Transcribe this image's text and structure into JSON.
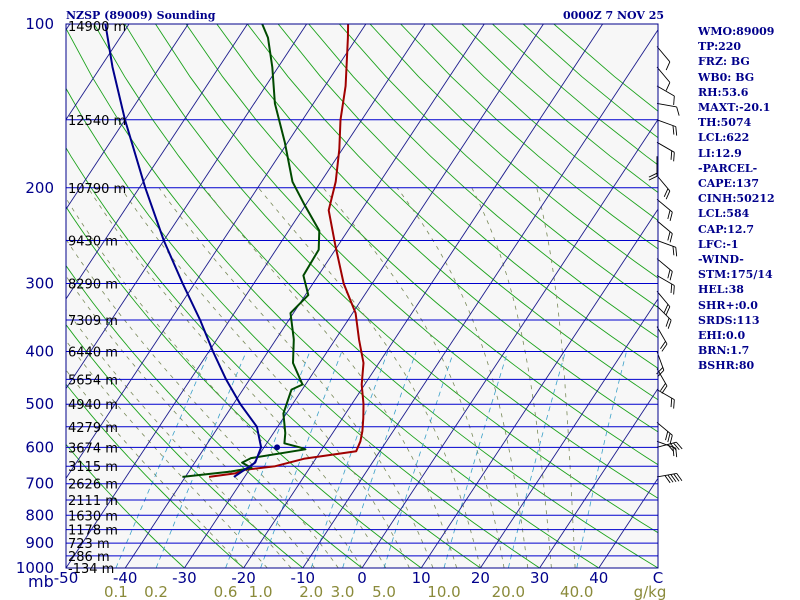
{
  "header": {
    "station": "NZSP (89009) Sounding",
    "time": "0000Z  7 NOV 25"
  },
  "indices": [
    "WMO:89009",
    "TP:220",
    "FRZ: BG",
    "WB0: BG",
    "RH:53.6",
    "MAXT:-20.1",
    "TH:5074",
    "LCL:622",
    "LI:12.9",
    "-PARCEL-",
    "CAPE:137",
    "CINH:50212",
    "LCL:584",
    "CAP:12.7",
    "LFC:-1",
    "-WIND-",
    "STM:175/14",
    "HEL:38",
    "SHR+:0.0",
    "SRDS:113",
    "EHI:0.0",
    "BRN:1.7",
    "BSHR:80"
  ],
  "footer": {
    "unit": "mb"
  },
  "colors": {
    "isobar": "#0000cd",
    "isotherm": "#1c1c8c",
    "dry_adiabat": "#1ca21c",
    "moist_adiabat": "#7a8a5a",
    "mixing_ratio": "#3aa0c8",
    "temperature": "#a00000",
    "dewpoint": "#004a00",
    "parcel": "#00008b",
    "axis_text": "#00008b",
    "mixing_text": "#8a8a3a",
    "background": "#f7f7f7"
  },
  "chart_data": {
    "type": "line",
    "title": "NZSP (89009) Sounding",
    "xlabel": "",
    "ylabel": "",
    "y_scale": "log",
    "ylim": [
      1000,
      100
    ],
    "xlim": [
      -50,
      50
    ],
    "pressure_levels": [
      100,
      200,
      300,
      400,
      500,
      600,
      700,
      800,
      900,
      1000
    ],
    "pressure_ticks": [
      {
        "p": 100,
        "label": "100",
        "height": "14900 m"
      },
      {
        "p": 150,
        "label": "",
        "height": "12540 m"
      },
      {
        "p": 200,
        "label": "200",
        "height": "10790 m"
      },
      {
        "p": 250,
        "label": "",
        "height": "9430 m"
      },
      {
        "p": 300,
        "label": "300",
        "height": "8290 m"
      },
      {
        "p": 350,
        "label": "",
        "height": "7309 m"
      },
      {
        "p": 400,
        "label": "400",
        "height": "6440 m"
      },
      {
        "p": 450,
        "label": "",
        "height": "5654 m"
      },
      {
        "p": 500,
        "label": "500",
        "height": "4940 m"
      },
      {
        "p": 550,
        "label": "",
        "height": "4279 m"
      },
      {
        "p": 600,
        "label": "600",
        "height": "3674 m"
      },
      {
        "p": 650,
        "label": "",
        "height": "3115 m"
      },
      {
        "p": 700,
        "label": "700",
        "height": "2626 m"
      },
      {
        "p": 750,
        "label": "",
        "height": "2111 m"
      },
      {
        "p": 800,
        "label": "800",
        "height": "1630 m"
      },
      {
        "p": 850,
        "label": "",
        "height": "1178 m"
      },
      {
        "p": 900,
        "label": "900",
        "height": "723 m"
      },
      {
        "p": 950,
        "label": "",
        "height": "286 m"
      },
      {
        "p": 1000,
        "label": "1000",
        "height": "-134 m"
      }
    ],
    "temperature_ticks": [
      {
        "t": -50,
        "label": "-50"
      },
      {
        "t": -40,
        "label": "-40"
      },
      {
        "t": -30,
        "label": "-30"
      },
      {
        "t": -20,
        "label": "-20"
      },
      {
        "t": -10,
        "label": "-10"
      },
      {
        "t": 0,
        "label": "0"
      },
      {
        "t": 10,
        "label": "10"
      },
      {
        "t": 20,
        "label": "20"
      },
      {
        "t": 30,
        "label": "30"
      },
      {
        "t": 40,
        "label": "40"
      },
      {
        "t": 50,
        "label": "C"
      }
    ],
    "mixing_ratio_lines": [
      {
        "w": 0.1,
        "label": "0.1"
      },
      {
        "w": 0.2,
        "label": "0.2"
      },
      {
        "w": 0.6,
        "label": "0.6"
      },
      {
        "w": 1.0,
        "label": "1.0"
      },
      {
        "w": 2.0,
        "label": "2.0"
      },
      {
        "w": 3.0,
        "label": "3.0"
      },
      {
        "w": 5.0,
        "label": "5.0"
      },
      {
        "w": 10.0,
        "label": "10.0"
      },
      {
        "w": 20.0,
        "label": "20.0"
      },
      {
        "w": 40.0,
        "label": "40.0"
      }
    ],
    "mixing_ratio_unit": "g/kg",
    "series": [
      {
        "role": "temperature",
        "points": [
          [
            680,
            -36.0
          ],
          [
            670,
            -32.0
          ],
          [
            660,
            -30.7
          ],
          [
            650,
            -26.0
          ],
          [
            630,
            -22.0
          ],
          [
            610,
            -14.0
          ],
          [
            585,
            -14.4
          ],
          [
            560,
            -15.2
          ],
          [
            530,
            -16.5
          ],
          [
            500,
            -18.0
          ],
          [
            460,
            -20.5
          ],
          [
            420,
            -22.6
          ],
          [
            380,
            -26.0
          ],
          [
            340,
            -29.5
          ],
          [
            300,
            -34.8
          ],
          [
            255,
            -40.5
          ],
          [
            220,
            -45.5
          ],
          [
            195,
            -47.5
          ],
          [
            170,
            -50.5
          ],
          [
            150,
            -53.6
          ],
          [
            130,
            -56.5
          ],
          [
            115,
            -59.5
          ],
          [
            106,
            -61.5
          ],
          [
            100,
            -63.0
          ]
        ]
      },
      {
        "role": "dewpoint",
        "points": [
          [
            680,
            -40.5
          ],
          [
            665,
            -33.0
          ],
          [
            655,
            -29.8
          ],
          [
            640,
            -32.0
          ],
          [
            628,
            -31.0
          ],
          [
            605,
            -22.8
          ],
          [
            600,
            -24.0
          ],
          [
            590,
            -27.0
          ],
          [
            565,
            -28.0
          ],
          [
            520,
            -30.5
          ],
          [
            470,
            -31.8
          ],
          [
            460,
            -30.5
          ],
          [
            420,
            -34.5
          ],
          [
            380,
            -37.0
          ],
          [
            340,
            -40.5
          ],
          [
            315,
            -39.5
          ],
          [
            290,
            -42.5
          ],
          [
            260,
            -42.8
          ],
          [
            240,
            -44.8
          ],
          [
            215,
            -50.2
          ],
          [
            195,
            -54.8
          ],
          [
            165,
            -60.5
          ],
          [
            140,
            -66.5
          ],
          [
            120,
            -71.0
          ],
          [
            106,
            -75.0
          ],
          [
            100,
            -77.5
          ]
        ]
      },
      {
        "role": "parcel",
        "points": [
          [
            680,
            -31.8
          ],
          [
            640,
            -29.8
          ],
          [
            600,
            -30.5
          ],
          [
            550,
            -33.5
          ],
          [
            500,
            -38.8
          ],
          [
            450,
            -44.0
          ],
          [
            400,
            -49.3
          ],
          [
            350,
            -55.0
          ],
          [
            300,
            -62.0
          ],
          [
            250,
            -70.0
          ],
          [
            200,
            -79.0
          ],
          [
            150,
            -90.0
          ],
          [
            120,
            -98.0
          ],
          [
            100,
            -104.0
          ]
        ]
      }
    ],
    "parcel_marker": {
      "p": 600,
      "t": -27.8
    },
    "wind_barbs": [
      {
        "p": 680,
        "dir": 80,
        "spd": 45
      },
      {
        "p": 600,
        "dir": 75,
        "spd": 40
      },
      {
        "p": 585,
        "dir": 110,
        "spd": 20
      },
      {
        "p": 540,
        "dir": 130,
        "spd": 25
      },
      {
        "p": 470,
        "dir": 120,
        "spd": 20
      },
      {
        "p": 430,
        "dir": 150,
        "spd": 15
      },
      {
        "p": 400,
        "dir": 160,
        "spd": 15
      },
      {
        "p": 360,
        "dir": 150,
        "spd": 15
      },
      {
        "p": 330,
        "dir": 135,
        "spd": 20
      },
      {
        "p": 310,
        "dir": 140,
        "spd": 20
      },
      {
        "p": 290,
        "dir": 120,
        "spd": 20
      },
      {
        "p": 270,
        "dir": 130,
        "spd": 15
      },
      {
        "p": 250,
        "dir": 110,
        "spd": 20
      },
      {
        "p": 230,
        "dir": 130,
        "spd": 15
      },
      {
        "p": 210,
        "dir": 130,
        "spd": 15
      },
      {
        "p": 190,
        "dir": 140,
        "spd": 20
      },
      {
        "p": 175,
        "dir": 180,
        "spd": 15
      },
      {
        "p": 165,
        "dir": 120,
        "spd": 20
      },
      {
        "p": 150,
        "dir": 110,
        "spd": 15
      },
      {
        "p": 140,
        "dir": 100,
        "spd": 10
      },
      {
        "p": 130,
        "dir": 120,
        "spd": 10
      },
      {
        "p": 120,
        "dir": 140,
        "spd": 10
      },
      {
        "p": 110,
        "dir": 140,
        "spd": 10
      }
    ]
  }
}
